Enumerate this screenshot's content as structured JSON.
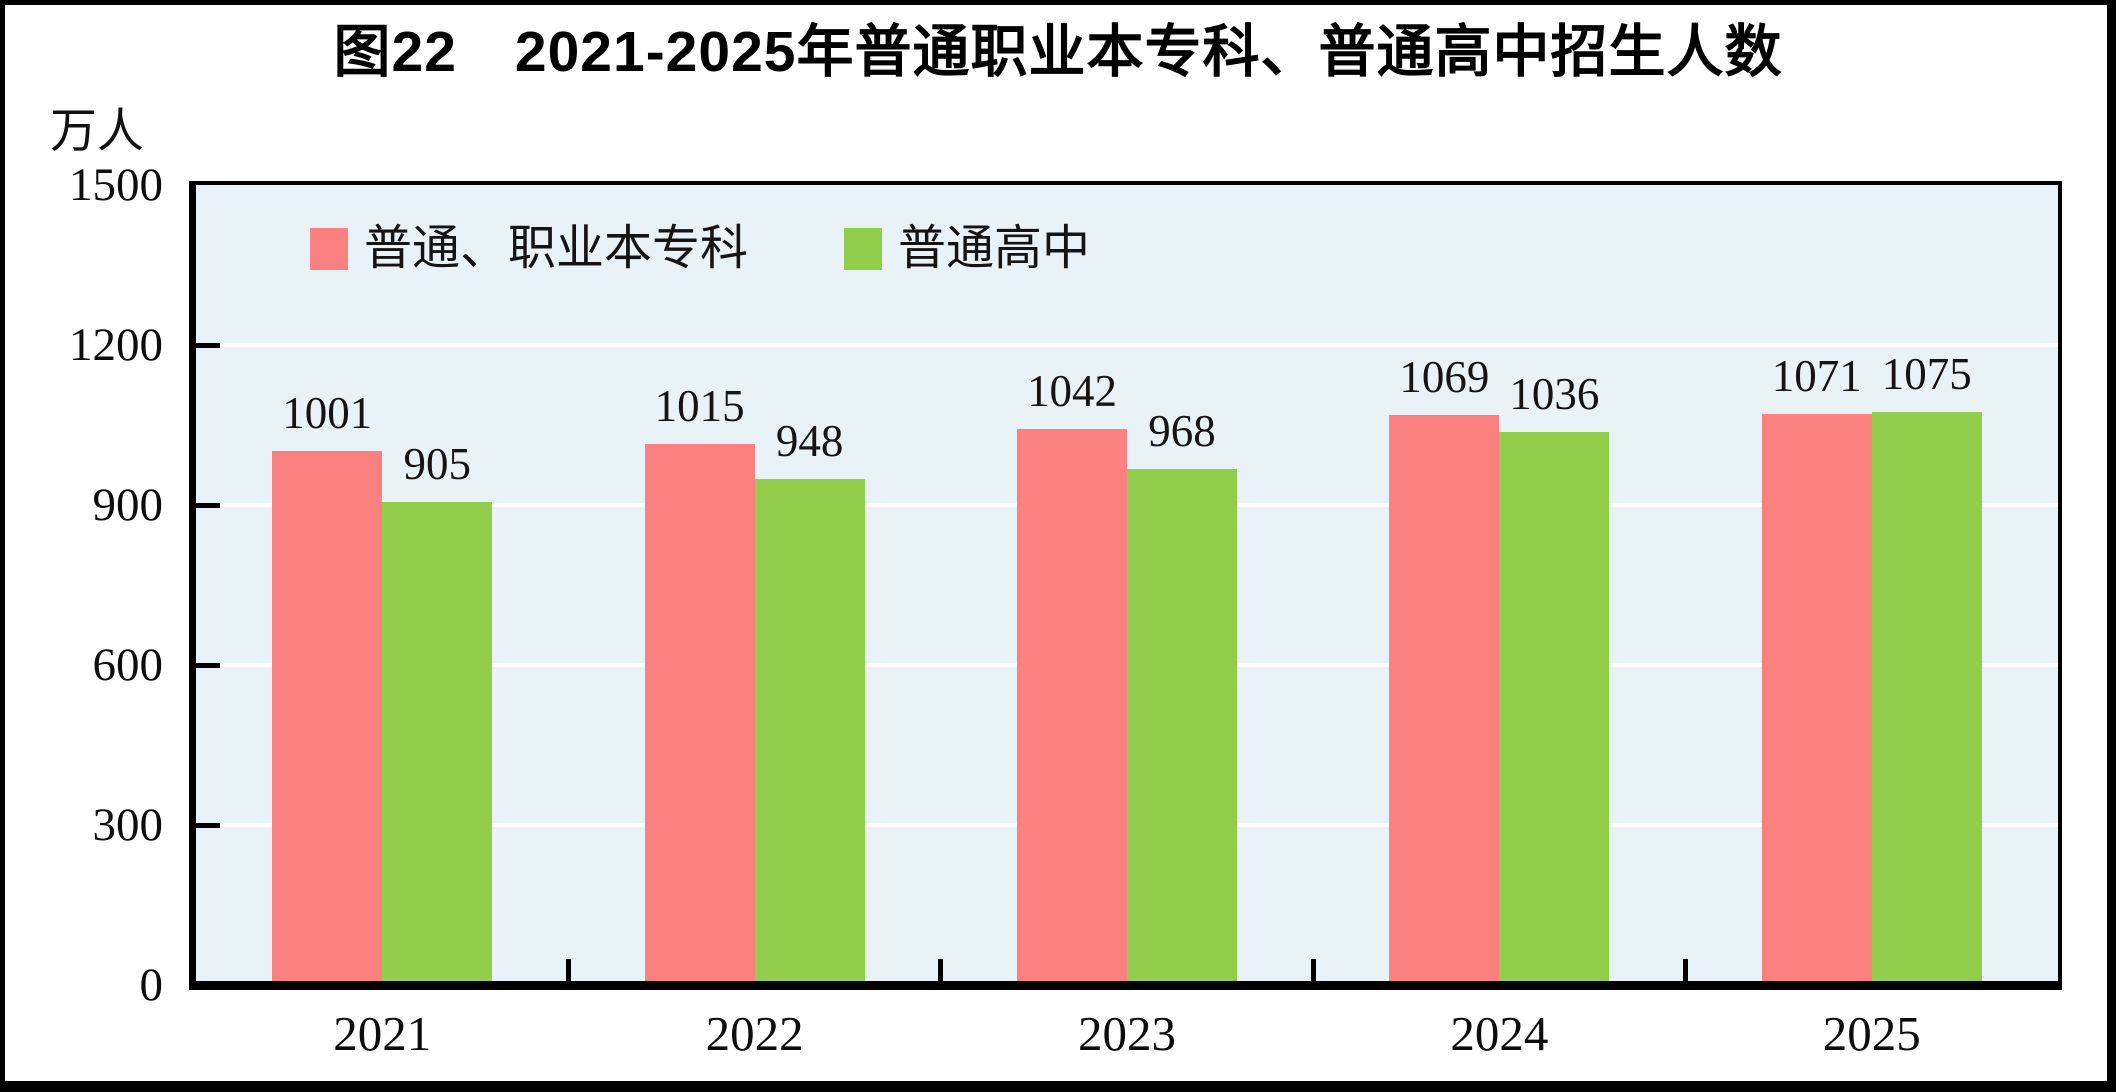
{
  "chart_data": {
    "type": "bar",
    "title": "图22　2021-2025年普通职业本专科、普通高中招生人数",
    "unit_label": "万人",
    "categories": [
      "2021",
      "2022",
      "2023",
      "2024",
      "2025"
    ],
    "series": [
      {
        "name": "普通、职业本专科",
        "color": "#fb8080",
        "values": [
          1001,
          1015,
          1042,
          1069,
          1071
        ]
      },
      {
        "name": "普通高中",
        "color": "#92ce4c",
        "values": [
          905,
          948,
          968,
          1036,
          1075
        ]
      }
    ],
    "ylim": [
      0,
      1500
    ],
    "yticks": [
      0,
      300,
      600,
      900,
      1200,
      1500
    ],
    "grid": "horizontal",
    "gridline_color": "#ffffff",
    "plot_bg_color": "#e9f2f7",
    "axis_color": "#000000",
    "legend_position": "top-inside",
    "value_labels": true
  }
}
